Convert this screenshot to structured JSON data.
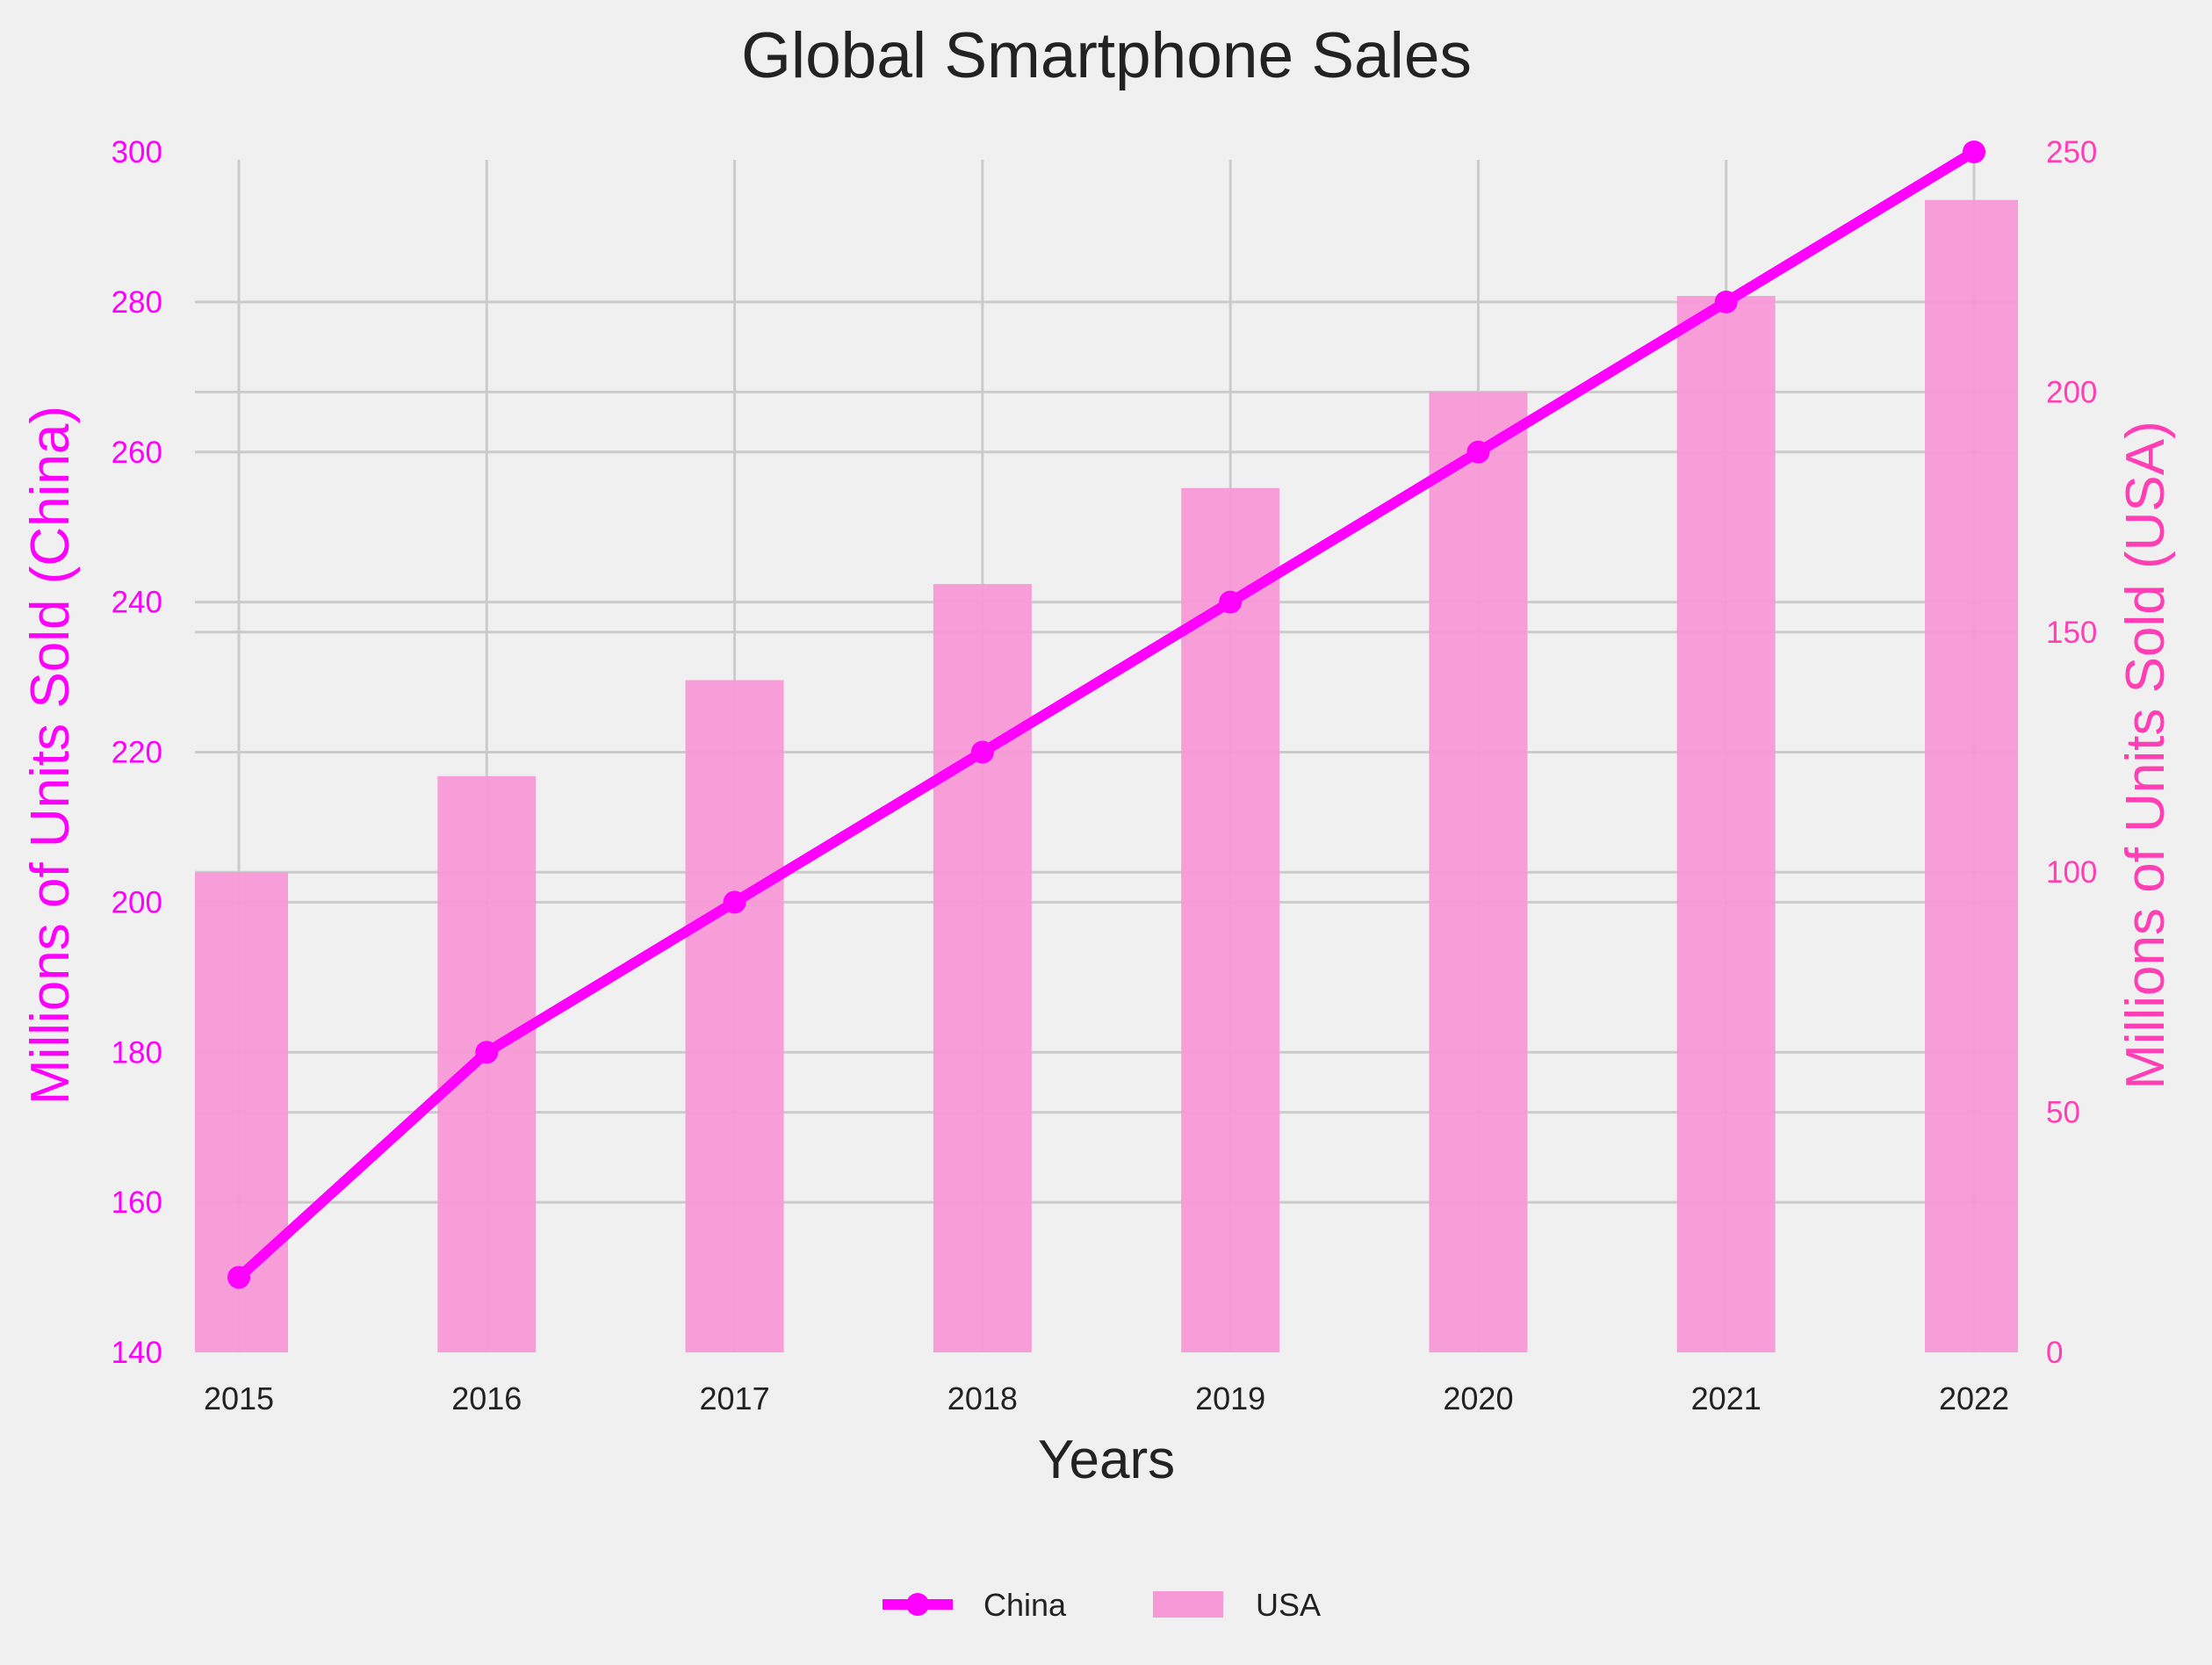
{
  "chart_data": {
    "type": "bar",
    "title": "Global Smartphone Sales",
    "xlabel": "Years",
    "ylabel_left": "Millions of Units Sold (China)",
    "ylabel_right": "Millions of Units Sold (USA)",
    "categories": [
      "2015",
      "2016",
      "2017",
      "2018",
      "2019",
      "2020",
      "2021",
      "2022"
    ],
    "series": [
      {
        "name": "China",
        "type": "line",
        "axis": "left",
        "color": "#ff00ff",
        "values": [
          150,
          180,
          200,
          220,
          240,
          260,
          280,
          300
        ]
      },
      {
        "name": "USA",
        "type": "bar",
        "axis": "right",
        "color": "#f799d7",
        "values": [
          100,
          120,
          140,
          160,
          180,
          200,
          220,
          240
        ]
      }
    ],
    "ylim_left": [
      140,
      300
    ],
    "yticks_left": [
      140,
      160,
      180,
      200,
      220,
      240,
      260,
      280,
      300
    ],
    "ylim_right": [
      0,
      250
    ],
    "yticks_right": [
      0,
      50,
      100,
      150,
      200,
      250
    ],
    "grid": true,
    "legend_position": "bottom-center",
    "colors": {
      "left_axis": "#ff00ff",
      "right_axis": "#ff3fb3"
    }
  }
}
